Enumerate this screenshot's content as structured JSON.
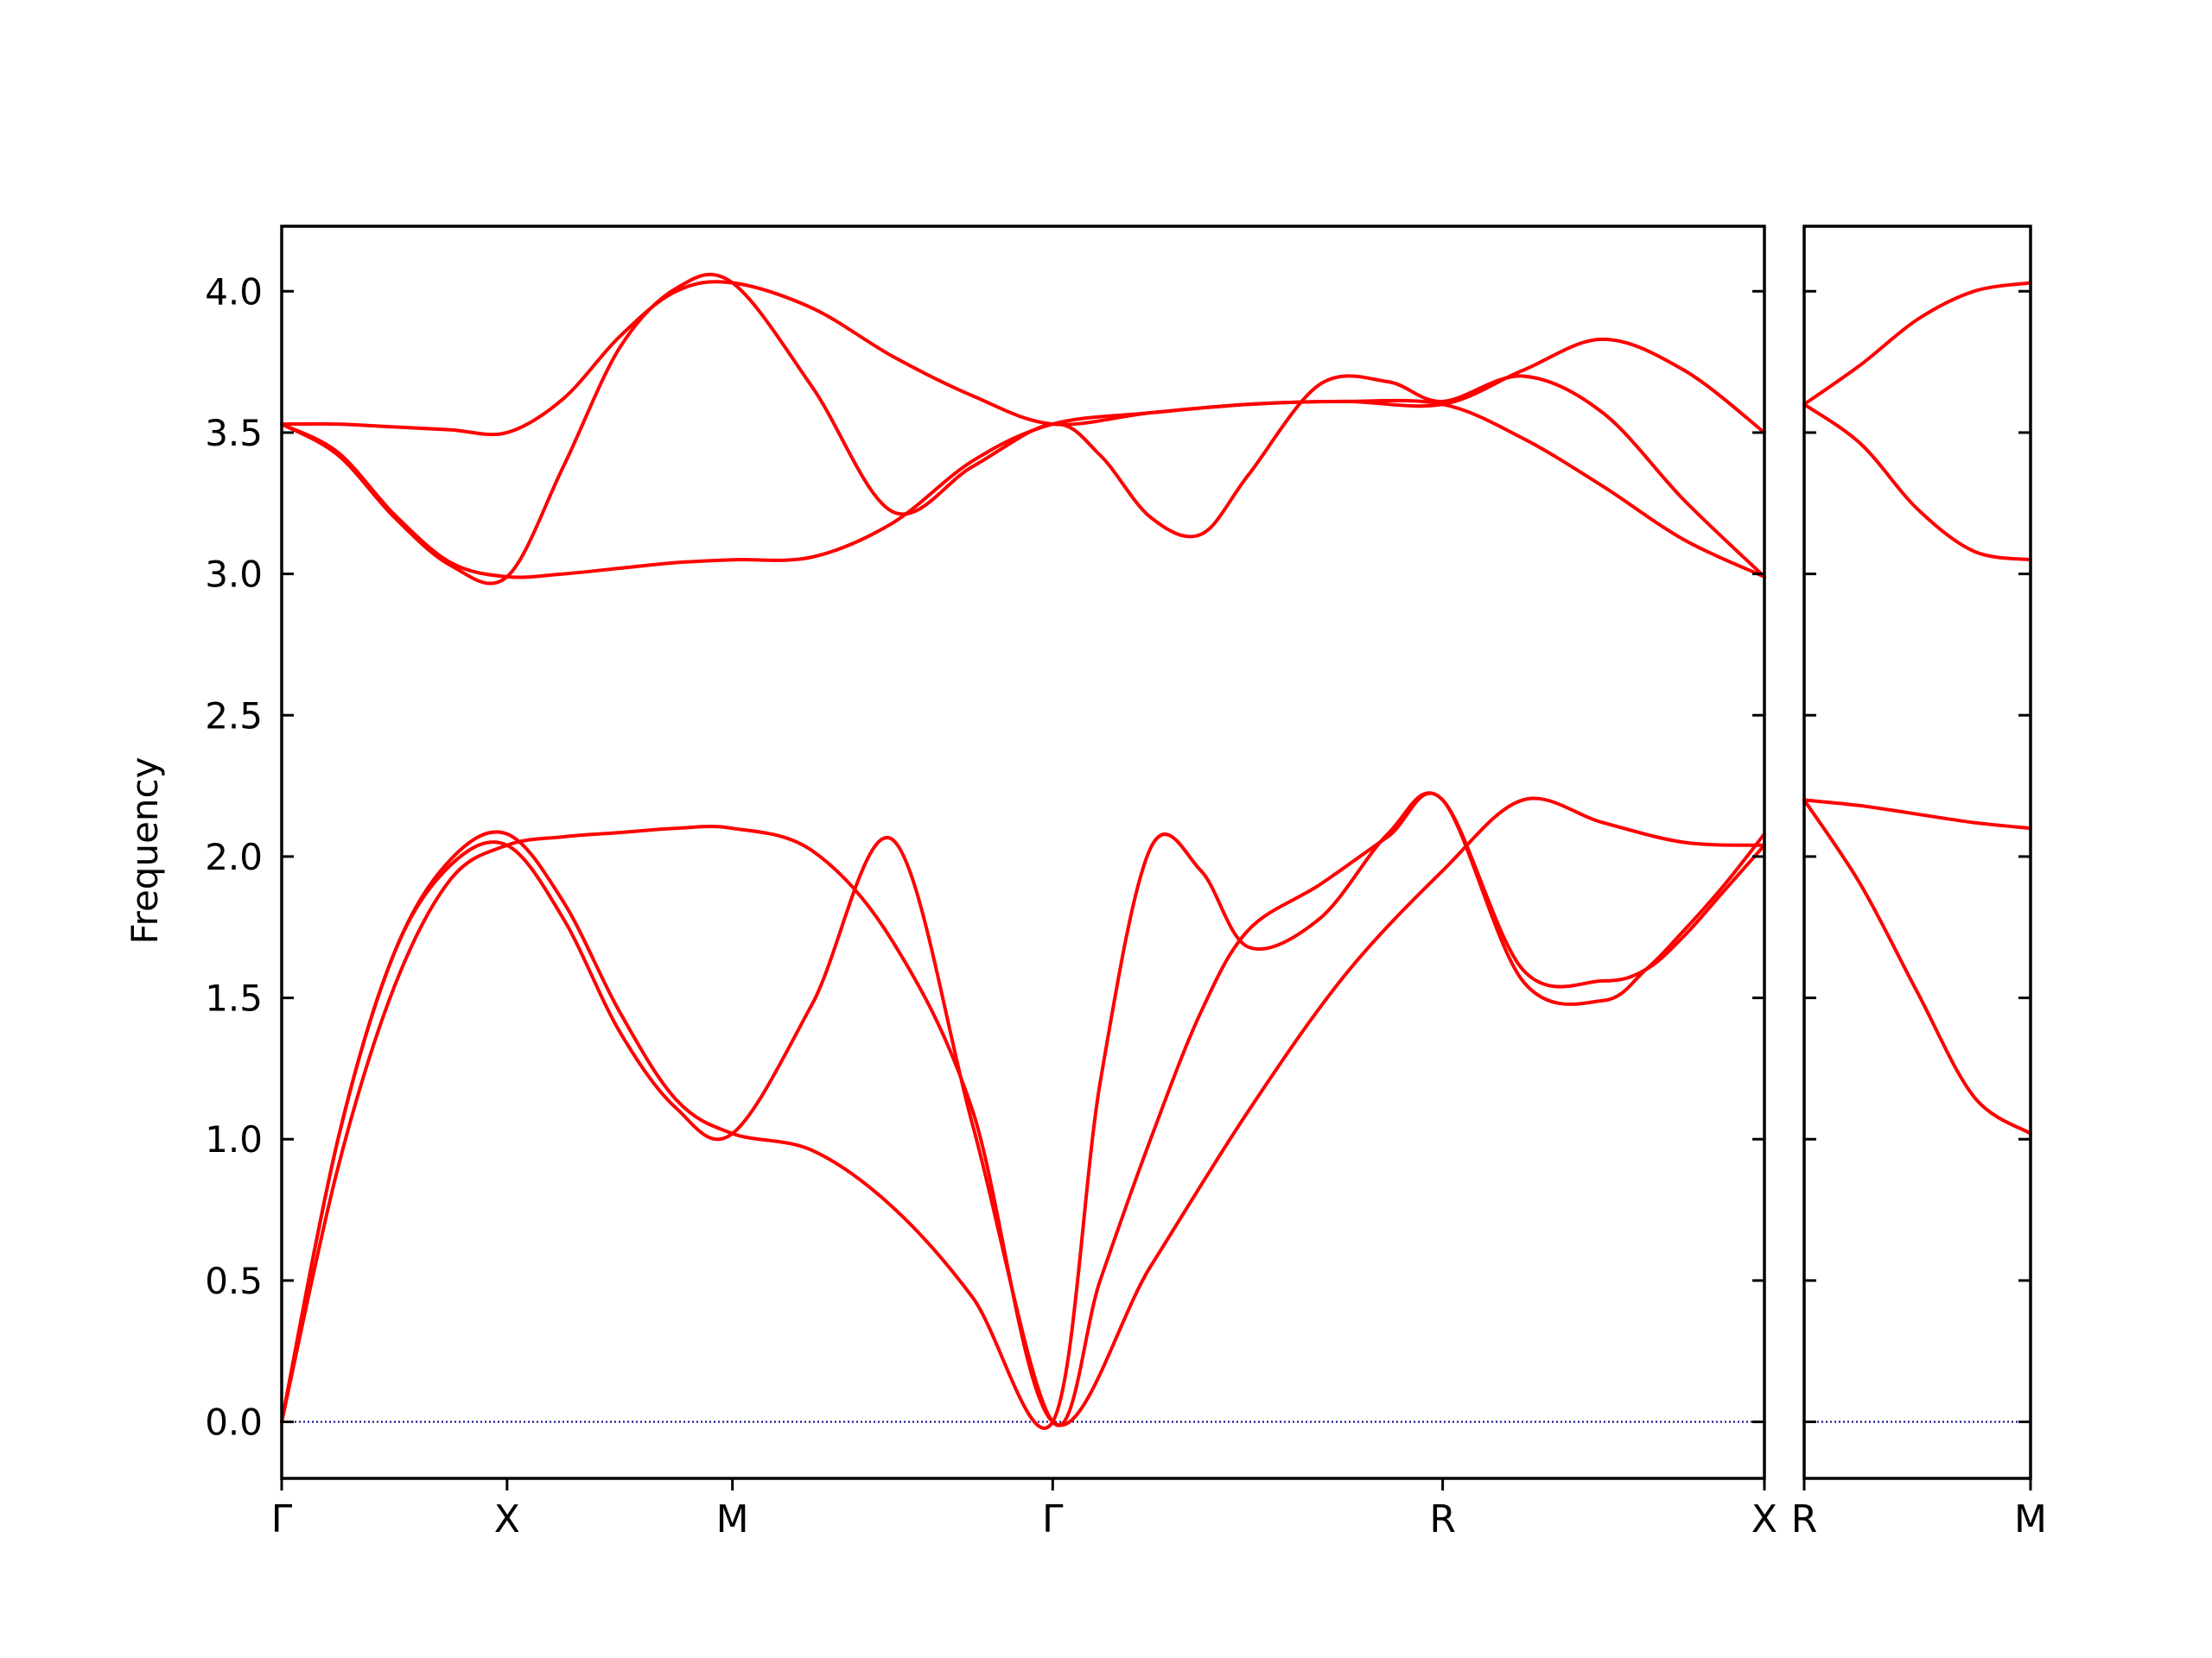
{
  "chart_data": {
    "type": "line",
    "ylabel": "Frequency",
    "xlabel": "",
    "ylim": [
      -0.2,
      4.23
    ],
    "yticks": [
      0.0,
      0.5,
      1.0,
      1.5,
      2.0,
      2.5,
      3.0,
      3.5,
      4.0
    ],
    "ytick_labels": [
      "0.0",
      "0.5",
      "1.0",
      "1.5",
      "2.0",
      "2.5",
      "3.0",
      "3.5",
      "4.0"
    ],
    "line_color": "#ff0000",
    "zero_line_color": "#00008b",
    "grid": false,
    "panels": [
      {
        "xlim": [
          0,
          1
        ],
        "ticks": [
          {
            "x": 0.0,
            "label": "Γ"
          },
          {
            "x": 0.152,
            "label": "X"
          },
          {
            "x": 0.304,
            "label": "M"
          },
          {
            "x": 0.52,
            "label": "Γ"
          },
          {
            "x": 0.783,
            "label": "R"
          },
          {
            "x": 1.0,
            "label": "X"
          }
        ],
        "series": [
          {
            "x": [
              0,
              0.038,
              0.076,
              0.114,
              0.152,
              0.19,
              0.228,
              0.266,
              0.304,
              0.358,
              0.412,
              0.466,
              0.52,
              0.586,
              0.652,
              0.717,
              0.783,
              0.837,
              0.891,
              0.946,
              1.0
            ],
            "y": [
              0,
              0.9,
              1.54,
              1.92,
              2.04,
              2.07,
              2.085,
              2.1,
              2.1,
              2.02,
              1.7,
              1.1,
              0,
              0.55,
              1.1,
              1.58,
              1.95,
              2.2,
              2.12,
              2.05,
              2.04
            ]
          },
          {
            "x": [
              0,
              0.038,
              0.076,
              0.114,
              0.152,
              0.19,
              0.228,
              0.266,
              0.304,
              0.358,
              0.412,
              0.466,
              0.52,
              0.552,
              0.586,
              0.62,
              0.652,
              0.7,
              0.746,
              0.783,
              0.837,
              0.891,
              0.92,
              0.946,
              0.973,
              1.0
            ],
            "y": [
              0,
              1.0,
              1.66,
              1.99,
              2.08,
              1.84,
              1.45,
              1.14,
              1.02,
              0.96,
              0.76,
              0.44,
              0,
              1.2,
              2.03,
              1.95,
              1.68,
              1.78,
              2.08,
              2.2,
              1.6,
              1.56,
              1.6,
              1.72,
              1.88,
              2.04
            ]
          },
          {
            "x": [
              0,
              0.038,
              0.076,
              0.114,
              0.152,
              0.19,
              0.228,
              0.266,
              0.304,
              0.358,
              0.412,
              0.466,
              0.52,
              0.552,
              0.586,
              0.62,
              0.652,
              0.7,
              0.746,
              0.783,
              0.837,
              0.891,
              0.92,
              0.946,
              0.973,
              1.0
            ],
            "y": [
              0,
              1.0,
              1.66,
              1.97,
              2.04,
              1.78,
              1.38,
              1.11,
              1.02,
              1.48,
              2.06,
              1.05,
              0,
              0.5,
              1.0,
              1.45,
              1.74,
              1.9,
              2.07,
              2.2,
              1.56,
              1.49,
              1.6,
              1.74,
              1.9,
              2.08
            ]
          },
          {
            "x": [
              0,
              0.038,
              0.076,
              0.114,
              0.152,
              0.19,
              0.228,
              0.266,
              0.304,
              0.358,
              0.412,
              0.466,
              0.52,
              0.586,
              0.652,
              0.717,
              0.783,
              0.837,
              0.891,
              0.946,
              1.0
            ],
            "y": [
              3.53,
              3.53,
              3.52,
              3.51,
              3.5,
              3.62,
              3.84,
              4.0,
              4.03,
              3.94,
              3.77,
              3.63,
              3.53,
              3.57,
              3.6,
              3.61,
              3.6,
              3.72,
              3.83,
              3.72,
              3.5
            ]
          },
          {
            "x": [
              0,
              0.038,
              0.076,
              0.114,
              0.152,
              0.19,
              0.228,
              0.266,
              0.304,
              0.358,
              0.412,
              0.466,
              0.52,
              0.552,
              0.586,
              0.62,
              0.652,
              0.7,
              0.746,
              0.783,
              0.837,
              0.891,
              0.946,
              1.0
            ],
            "y": [
              3.53,
              3.42,
              3.2,
              3.03,
              2.99,
              3.38,
              3.8,
              4.01,
              4.03,
              3.66,
              3.22,
              3.38,
              3.53,
              3.42,
              3.2,
              3.14,
              3.35,
              3.67,
              3.68,
              3.61,
              3.7,
              3.57,
              3.26,
              2.99
            ]
          },
          {
            "x": [
              0,
              0.038,
              0.076,
              0.114,
              0.152,
              0.19,
              0.228,
              0.266,
              0.304,
              0.358,
              0.412,
              0.466,
              0.52,
              0.586,
              0.652,
              0.717,
              0.783,
              0.837,
              0.891,
              0.946,
              1.0
            ],
            "y": [
              3.53,
              3.43,
              3.21,
              3.04,
              2.99,
              3.0,
              3.02,
              3.04,
              3.05,
              3.06,
              3.18,
              3.4,
              3.53,
              3.57,
              3.6,
              3.61,
              3.6,
              3.48,
              3.31,
              3.12,
              2.99
            ]
          }
        ]
      },
      {
        "xlim": [
          0,
          1
        ],
        "ticks": [
          {
            "x": 0.0,
            "label": "R"
          },
          {
            "x": 1.0,
            "label": "M"
          }
        ],
        "series": [
          {
            "x": [
              0,
              0.25,
              0.5,
              0.75,
              1.0
            ],
            "y": [
              3.6,
              3.74,
              3.9,
              4.0,
              4.03
            ]
          },
          {
            "x": [
              0,
              0.25,
              0.5,
              0.75,
              1.0
            ],
            "y": [
              3.6,
              3.46,
              3.23,
              3.08,
              3.05
            ]
          },
          {
            "x": [
              0,
              0.25,
              0.5,
              0.75,
              1.0
            ],
            "y": [
              2.2,
              2.18,
              2.15,
              2.12,
              2.1
            ]
          },
          {
            "x": [
              0,
              0.25,
              0.5,
              0.75,
              1.0
            ],
            "y": [
              2.2,
              1.9,
              1.52,
              1.15,
              1.02
            ]
          }
        ]
      }
    ]
  }
}
